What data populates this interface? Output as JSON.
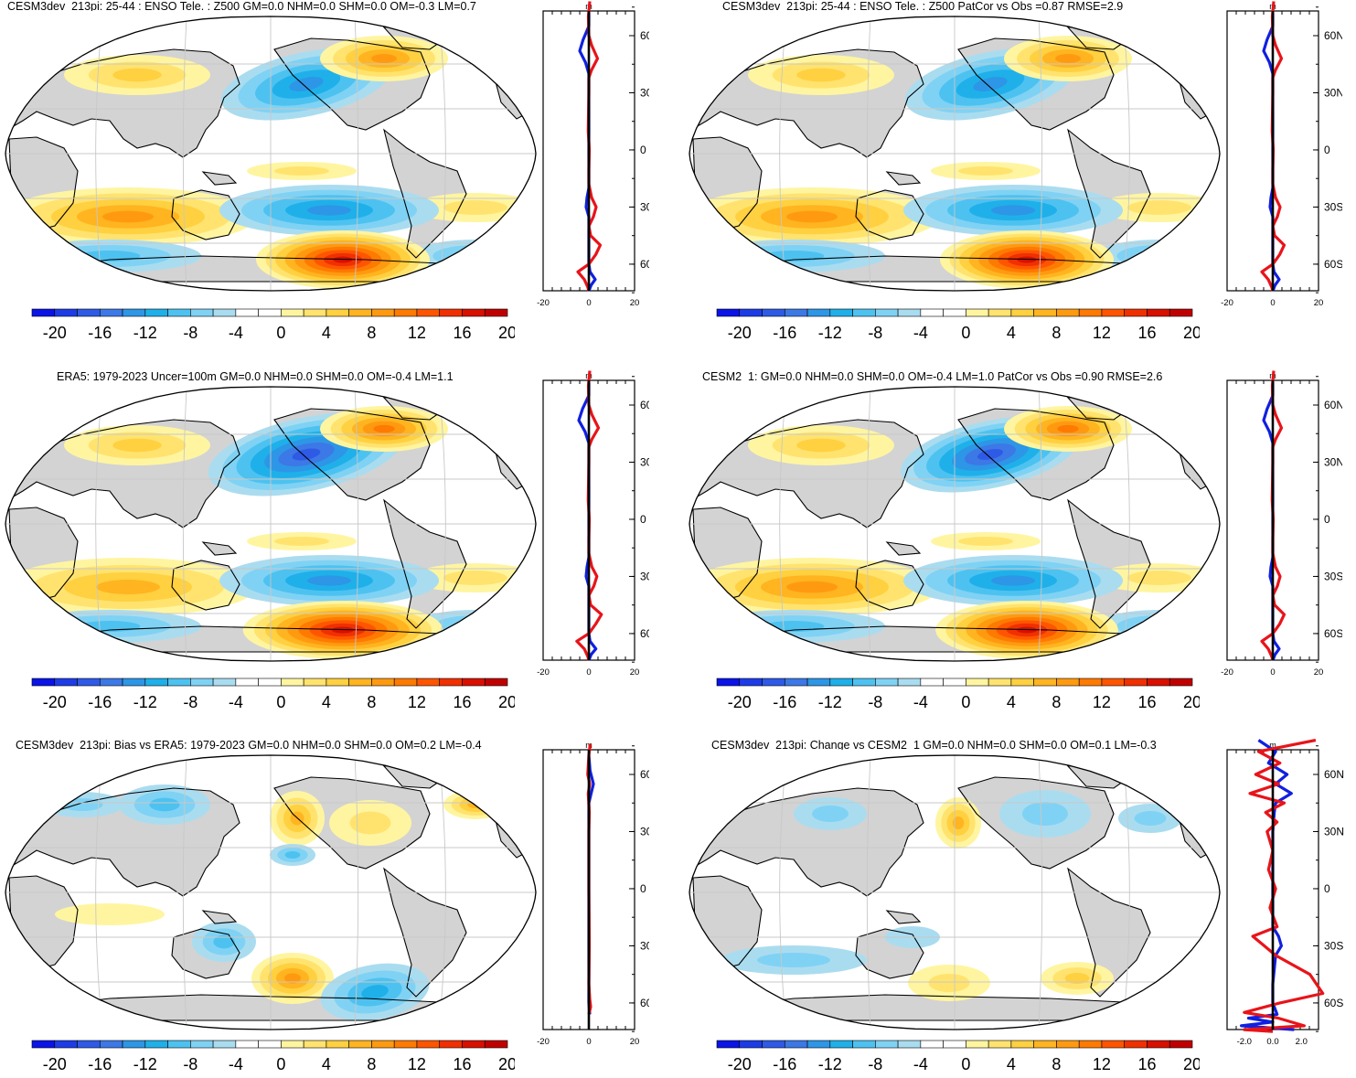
{
  "panels": [
    {
      "title": "CESM3dev_213pi: 25-44 : ENSO Tele. : Z500 GM=0.0 NHM=0.0 SHM=0.0 OM=-0.3 LM=0.7",
      "variant": "model"
    },
    {
      "title": "CESM3dev_213pi: 25-44 : ENSO Tele. : Z500 PatCor vs Obs =0.87 RMSE=2.9",
      "variant": "model"
    },
    {
      "title": "ERA5: 1979-2023 Uncer=100m GM=0.0 NHM=0.0 SHM=0.0 OM=-0.4 LM=1.1",
      "variant": "obs"
    },
    {
      "title": "CESM2_1: GM=0.0 NHM=0.0 SHM=0.0 OM=-0.4 LM=1.0 PatCor vs Obs =0.90 RMSE=2.6",
      "variant": "cesm2"
    },
    {
      "title": "CESM3dev_213pi: Bias vs ERA5: 1979-2023 GM=0.0 NHM=0.0 SHM=0.0 OM=0.2 LM=-0.4",
      "variant": "bias"
    },
    {
      "title": "CESM3dev_213pi: Change vs CESM2_1 GM=0.0 NHM=0.0 SHM=0.0 OM=0.1 LM=-0.3",
      "variant": "change"
    }
  ],
  "colorbar": {
    "labels": [
      "-20",
      "-16",
      "-12",
      "-8",
      "-4",
      "0",
      "4",
      "8",
      "12",
      "16",
      "20"
    ],
    "colors": [
      "#0a14e6",
      "#1e3ce6",
      "#2e5ae6",
      "#3c78e6",
      "#2d96e6",
      "#1fb0ea",
      "#4dc2f0",
      "#7fd2f4",
      "#aadcf0",
      "#ffffff",
      "#ffffff",
      "#fff5a0",
      "#ffe36e",
      "#ffd040",
      "#ffb420",
      "#ff9a10",
      "#ff7a00",
      "#ff5500",
      "#f03000",
      "#d81000",
      "#c00000"
    ]
  },
  "profiles": {
    "units": "m",
    "lat_labels": [
      "60N",
      "30N",
      "0",
      "30S",
      "60S"
    ],
    "x_labels_standard": [
      "-20",
      "0",
      "20"
    ],
    "x_labels_change": [
      "-2.0",
      "0.0",
      "2.0"
    ]
  },
  "colors": {
    "land": "#d3d3d3",
    "ocean": "#ffffff",
    "red": "#e8141a",
    "blue": "#1020e0"
  }
}
